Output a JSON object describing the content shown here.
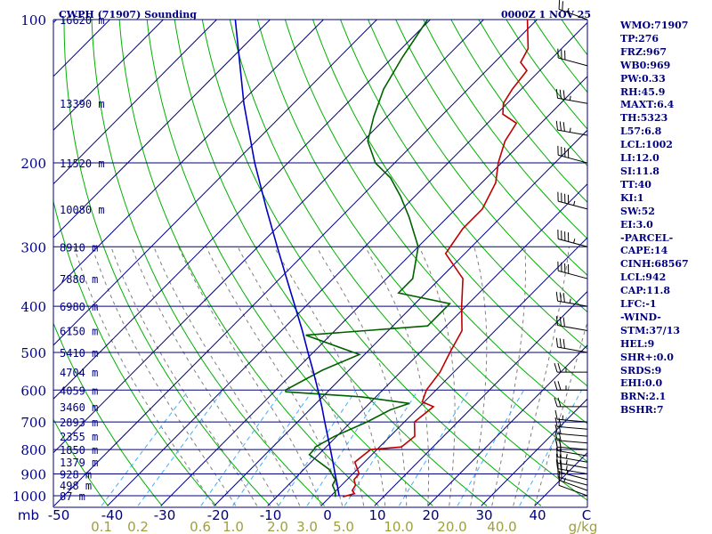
{
  "header": {
    "station": "CWPH (71907) Sounding",
    "time": "0000Z  1 NOV 25"
  },
  "indices": [
    "WMO:71907",
    "TP:276",
    "FRZ:967",
    "WB0:969",
    "PW:0.33",
    "RH:45.9",
    "MAXT:6.4",
    "TH:5323",
    "L57:6.8",
    "LCL:1002",
    "LI:12.0",
    "SI:11.8",
    "TT:40",
    "KI:1",
    "SW:52",
    "EI:3.0",
    "-PARCEL-",
    "CAPE:14",
    "CINH:68567",
    "LCL:942",
    "CAP:11.8",
    "LFC:-1",
    "-WIND-",
    "STM:37/13",
    "HEL:9",
    "SHR+:0.0",
    "SRDS:9",
    "EHI:0.0",
    "BRN:2.1",
    "BSHR:7"
  ],
  "colors": {
    "background": "#ffffff",
    "isobar": "#00007f",
    "isotherm": "#00007f",
    "dry_adiabat": "#00b000",
    "moist_adiabat": "#7f7f7f",
    "mixing_ratio": "#3fafff",
    "temperature": "#bf0000",
    "dewpoint": "#005f00",
    "parcel": "#0000bf",
    "wind_barb": "#000000",
    "mixing_ratio_label": "#9f9f3f",
    "text": "#00007f"
  },
  "chart_data": {
    "type": "line",
    "title": "CWPH (71907) Sounding",
    "pressure_unit": "mb",
    "mixing_ratio_unit": "g/kg",
    "pressure_levels": [
      100,
      200,
      300,
      400,
      500,
      600,
      700,
      800,
      900,
      1000
    ],
    "pressure_tick_labels": [
      "100",
      "200",
      "300",
      "400",
      "500",
      "600",
      "700",
      "800",
      "900",
      "1000"
    ],
    "temperature_ticks": [
      -50,
      -40,
      -30,
      -20,
      -10,
      0,
      10,
      20,
      30,
      40
    ],
    "temperature_tick_labels": [
      "mb",
      "-50",
      "-40",
      "-30",
      "-20",
      "-10",
      "0",
      "10",
      "20",
      "30",
      "40",
      "C"
    ],
    "mixing_ratio_tick_labels": [
      "0.1",
      "0.2",
      "0.6",
      "1.0",
      "2.0",
      "3.0",
      "5.0",
      "10.0",
      "20.0",
      "40.0",
      "g/kg"
    ],
    "height_labels": [
      {
        "p": 100,
        "label": "16620 m"
      },
      {
        "p": 150,
        "label": "13390 m"
      },
      {
        "p": 200,
        "label": "11520 m"
      },
      {
        "p": 250,
        "label": "10080 m"
      },
      {
        "p": 300,
        "label": "8910 m"
      },
      {
        "p": 350,
        "label": "7880 m"
      },
      {
        "p": 400,
        "label": "6980 m"
      },
      {
        "p": 450,
        "label": "6150 m"
      },
      {
        "p": 500,
        "label": "5410 m"
      },
      {
        "p": 550,
        "label": "4704 m"
      },
      {
        "p": 600,
        "label": "4059 m"
      },
      {
        "p": 650,
        "label": "3460 m"
      },
      {
        "p": 700,
        "label": "2893 m"
      },
      {
        "p": 750,
        "label": "2355 m"
      },
      {
        "p": 800,
        "label": "1850 m"
      },
      {
        "p": 850,
        "label": "1379 m"
      },
      {
        "p": 900,
        "label": "928 m"
      },
      {
        "p": 950,
        "label": "498 m"
      },
      {
        "p": 1000,
        "label": "87 m"
      }
    ],
    "series": [
      {
        "points": [
          [
            1005,
            2.4
          ],
          [
            990,
            4.0
          ],
          [
            975,
            3.0
          ],
          [
            950,
            2.6
          ],
          [
            925,
            1.3
          ],
          [
            900,
            1.2
          ],
          [
            850,
            -1.8
          ],
          [
            800,
            -1.2
          ],
          [
            790,
            4.1
          ],
          [
            750,
            4.6
          ],
          [
            700,
            1.9
          ],
          [
            650,
            2.6
          ],
          [
            635,
            -0.4
          ],
          [
            600,
            -1.8
          ],
          [
            550,
            -2.6
          ],
          [
            500,
            -4.4
          ],
          [
            450,
            -6.2
          ],
          [
            400,
            -10.8
          ],
          [
            350,
            -15.7
          ],
          [
            310,
            -23.6
          ],
          [
            275,
            -25.0
          ],
          [
            250,
            -25.0
          ],
          [
            220,
            -27.4
          ],
          [
            200,
            -30.6
          ],
          [
            180,
            -33.4
          ],
          [
            165,
            -34.6
          ],
          [
            158,
            -38.8
          ],
          [
            150,
            -40.7
          ],
          [
            140,
            -41.7
          ],
          [
            128,
            -42.4
          ],
          [
            123,
            -45.1
          ],
          [
            115,
            -46.3
          ],
          [
            100,
            -51.8
          ]
        ]
      },
      {
        "points": [
          [
            1005,
            1.0
          ],
          [
            980,
            0.0
          ],
          [
            950,
            -1.7
          ],
          [
            925,
            -2.2
          ],
          [
            880,
            -5.3
          ],
          [
            820,
            -11.7
          ],
          [
            800,
            -11.8
          ],
          [
            790,
            -12.0
          ],
          [
            750,
            -10.4
          ],
          [
            700,
            -7.0
          ],
          [
            660,
            -4.9
          ],
          [
            640,
            -2.5
          ],
          [
            620,
            -12.7
          ],
          [
            605,
            -27.8
          ],
          [
            600,
            -28.2
          ],
          [
            545,
            -25.0
          ],
          [
            505,
            -21.0
          ],
          [
            460,
            -34.6
          ],
          [
            440,
            -13.5
          ],
          [
            395,
            -13.5
          ],
          [
            375,
            -25.1
          ],
          [
            350,
            -25.1
          ],
          [
            300,
            -30.0
          ],
          [
            260,
            -37.2
          ],
          [
            235,
            -42.7
          ],
          [
            215,
            -48.0
          ],
          [
            200,
            -53.6
          ],
          [
            180,
            -59.1
          ],
          [
            160,
            -62.5
          ],
          [
            140,
            -65.8
          ],
          [
            120,
            -68.2
          ],
          [
            100,
            -70.5
          ]
        ]
      },
      {
        "points": [
          [
            1000,
            1.5
          ],
          [
            950,
            -0.8
          ],
          [
            900,
            -3.3
          ],
          [
            850,
            -5.9
          ],
          [
            800,
            -8.7
          ],
          [
            750,
            -11.7
          ],
          [
            700,
            -14.9
          ],
          [
            650,
            -18.3
          ],
          [
            600,
            -22.1
          ],
          [
            550,
            -26.3
          ],
          [
            500,
            -31.0
          ],
          [
            450,
            -36.1
          ],
          [
            400,
            -42.0
          ],
          [
            350,
            -48.7
          ],
          [
            300,
            -56.4
          ],
          [
            250,
            -65.4
          ],
          [
            200,
            -76.2
          ],
          [
            150,
            -89.3
          ],
          [
            100,
            -106.5
          ]
        ]
      }
    ],
    "winds": [
      {
        "p": 1000,
        "dir": 290,
        "kt": 10
      },
      {
        "p": 975,
        "dir": 290,
        "kt": 15
      },
      {
        "p": 950,
        "dir": 285,
        "kt": 20
      },
      {
        "p": 925,
        "dir": 285,
        "kt": 25
      },
      {
        "p": 900,
        "dir": 280,
        "kt": 25
      },
      {
        "p": 875,
        "dir": 280,
        "kt": 25
      },
      {
        "p": 850,
        "dir": 280,
        "kt": 25
      },
      {
        "p": 825,
        "dir": 280,
        "kt": 20
      },
      {
        "p": 800,
        "dir": 275,
        "kt": 20
      },
      {
        "p": 775,
        "dir": 275,
        "kt": 20
      },
      {
        "p": 750,
        "dir": 275,
        "kt": 20
      },
      {
        "p": 725,
        "dir": 275,
        "kt": 20
      },
      {
        "p": 700,
        "dir": 275,
        "kt": 15
      },
      {
        "p": 650,
        "dir": 270,
        "kt": 20
      },
      {
        "p": 600,
        "dir": 270,
        "kt": 25
      },
      {
        "p": 550,
        "dir": 270,
        "kt": 25
      },
      {
        "p": 500,
        "dir": 280,
        "kt": 30
      },
      {
        "p": 450,
        "dir": 280,
        "kt": 30
      },
      {
        "p": 400,
        "dir": 280,
        "kt": 35
      },
      {
        "p": 350,
        "dir": 285,
        "kt": 40
      },
      {
        "p": 300,
        "dir": 285,
        "kt": 45
      },
      {
        "p": 250,
        "dir": 285,
        "kt": 45
      },
      {
        "p": 200,
        "dir": 285,
        "kt": 40
      },
      {
        "p": 175,
        "dir": 280,
        "kt": 35
      },
      {
        "p": 150,
        "dir": 280,
        "kt": 35
      },
      {
        "p": 125,
        "dir": 285,
        "kt": 30
      },
      {
        "p": 100,
        "dir": 290,
        "kt": 25
      }
    ]
  }
}
